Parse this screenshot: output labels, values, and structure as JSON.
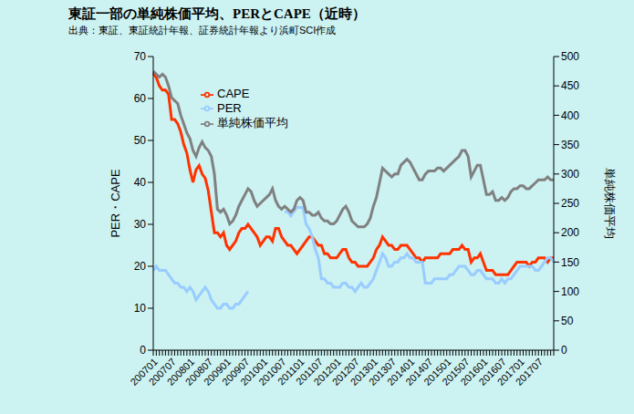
{
  "chart_data": {
    "type": "line",
    "title": "東証一部の単純株価平均、PERとCAPE（近時）",
    "subtitle": "出典：東証、東証統計年報、証券統計年報より浜町SCI作成",
    "ylabel": "PER・CAPE",
    "y2label": "単純株価平均",
    "categories": [
      "200701",
      null,
      null,
      null,
      null,
      null,
      "200707",
      null,
      null,
      null,
      null,
      null,
      "200801",
      null,
      null,
      null,
      null,
      null,
      "200807",
      null,
      null,
      null,
      null,
      null,
      "200901",
      null,
      null,
      null,
      null,
      null,
      "200907",
      null,
      null,
      null,
      null,
      null,
      "201001",
      null,
      null,
      null,
      null,
      null,
      "201007",
      null,
      null,
      null,
      null,
      null,
      "201101",
      null,
      null,
      null,
      null,
      null,
      "201107",
      null,
      null,
      null,
      null,
      null,
      "201201",
      null,
      null,
      null,
      null,
      null,
      "201207",
      null,
      null,
      null,
      null,
      null,
      "201301",
      null,
      null,
      null,
      null,
      null,
      "201307",
      null,
      null,
      null,
      null,
      null,
      "201401",
      null,
      null,
      null,
      null,
      null,
      "201407",
      null,
      null,
      null,
      null,
      null,
      "201501",
      null,
      null,
      null,
      null,
      null,
      "201507",
      null,
      null,
      null,
      null,
      null,
      "201601",
      null,
      null,
      null,
      null,
      null,
      "201607",
      null,
      null,
      null,
      null,
      null,
      "201701",
      null,
      null,
      null,
      null,
      null,
      "201707",
      null,
      null,
      null,
      null,
      null
    ],
    "series": [
      {
        "name": "CAPE",
        "color": "#ff3300",
        "axis": "y",
        "values": [
          66,
          65,
          63,
          62,
          62,
          61,
          55,
          55,
          54,
          52,
          49,
          47,
          43,
          40,
          43,
          44,
          42,
          41,
          38,
          33,
          28,
          28,
          27,
          28,
          25,
          24,
          25,
          26,
          28,
          29,
          29,
          30,
          29,
          28,
          27,
          25,
          26,
          27,
          27,
          26,
          29,
          29,
          27,
          26,
          25,
          25,
          24,
          23,
          24,
          25,
          26,
          27,
          27,
          26,
          25,
          25,
          23,
          23,
          22,
          22,
          22,
          23,
          24,
          24,
          22,
          21,
          21,
          20,
          20,
          20,
          20,
          21,
          22,
          24,
          25,
          27,
          26,
          25,
          25,
          24,
          24,
          25,
          25,
          25,
          24,
          23,
          22,
          22,
          21,
          22,
          22,
          22,
          22,
          22,
          23,
          23,
          23,
          23,
          24,
          24,
          24,
          25,
          24,
          24,
          21,
          22,
          22,
          23,
          21,
          19,
          19,
          19,
          18,
          18,
          18,
          18,
          18,
          19,
          20,
          21,
          21,
          21,
          21,
          20,
          21,
          21,
          22,
          22,
          22,
          21,
          22,
          22
        ]
      },
      {
        "name": "PER",
        "color": "#99ccff",
        "axis": "y",
        "values": [
          19,
          20,
          19,
          19,
          19,
          18,
          17,
          16,
          16,
          15,
          15,
          14,
          15,
          14,
          12,
          13,
          14,
          15,
          14,
          12,
          11,
          10,
          10,
          11,
          11,
          10,
          10,
          11,
          11,
          12,
          13,
          14,
          null,
          null,
          null,
          null,
          null,
          null,
          null,
          null,
          null,
          null,
          null,
          33,
          33,
          32,
          33,
          34,
          34,
          34,
          30,
          29,
          27,
          24,
          22,
          17,
          17,
          16,
          16,
          15,
          15,
          15,
          16,
          16,
          15,
          15,
          14,
          15,
          16,
          15,
          15,
          16,
          17,
          19,
          21,
          23,
          22,
          20,
          20,
          21,
          21,
          22,
          22,
          23,
          22,
          22,
          21,
          21,
          21,
          16,
          16,
          16,
          17,
          17,
          17,
          17,
          17,
          18,
          18,
          19,
          20,
          20,
          20,
          19,
          18,
          18,
          19,
          19,
          18,
          17,
          17,
          17,
          16,
          16,
          17,
          16,
          17,
          17,
          18,
          19,
          20,
          20,
          20,
          20,
          20,
          19,
          19,
          20,
          21,
          22,
          22,
          21
        ]
      },
      {
        "name": "単純株価平均",
        "color": "#808080",
        "axis": "y2",
        "values": [
          475,
          470,
          465,
          470,
          465,
          450,
          430,
          425,
          420,
          400,
          385,
          370,
          360,
          340,
          330,
          345,
          355,
          345,
          340,
          330,
          300,
          240,
          235,
          240,
          230,
          215,
          220,
          230,
          245,
          255,
          265,
          275,
          270,
          255,
          245,
          250,
          255,
          260,
          265,
          275,
          255,
          245,
          240,
          245,
          240,
          235,
          240,
          255,
          260,
          255,
          235,
          235,
          230,
          230,
          235,
          225,
          220,
          220,
          215,
          215,
          220,
          230,
          240,
          245,
          235,
          220,
          215,
          210,
          210,
          210,
          215,
          225,
          245,
          260,
          285,
          310,
          305,
          300,
          295,
          300,
          300,
          315,
          320,
          325,
          320,
          310,
          300,
          290,
          290,
          300,
          305,
          305,
          305,
          310,
          310,
          305,
          310,
          315,
          320,
          325,
          330,
          340,
          340,
          330,
          295,
          305,
          315,
          315,
          290,
          265,
          265,
          270,
          255,
          255,
          260,
          255,
          260,
          270,
          275,
          275,
          280,
          280,
          275,
          275,
          280,
          285,
          290,
          290,
          290,
          295,
          290,
          290
        ]
      }
    ],
    "ylim": [
      0,
      70
    ],
    "yticks": [
      0,
      10,
      20,
      30,
      40,
      50,
      60,
      70
    ],
    "y2lim": [
      0,
      500
    ],
    "y2ticks": [
      0,
      50,
      100,
      150,
      200,
      250,
      300,
      350,
      400,
      450,
      500
    ],
    "legend": "top",
    "grid": false
  }
}
